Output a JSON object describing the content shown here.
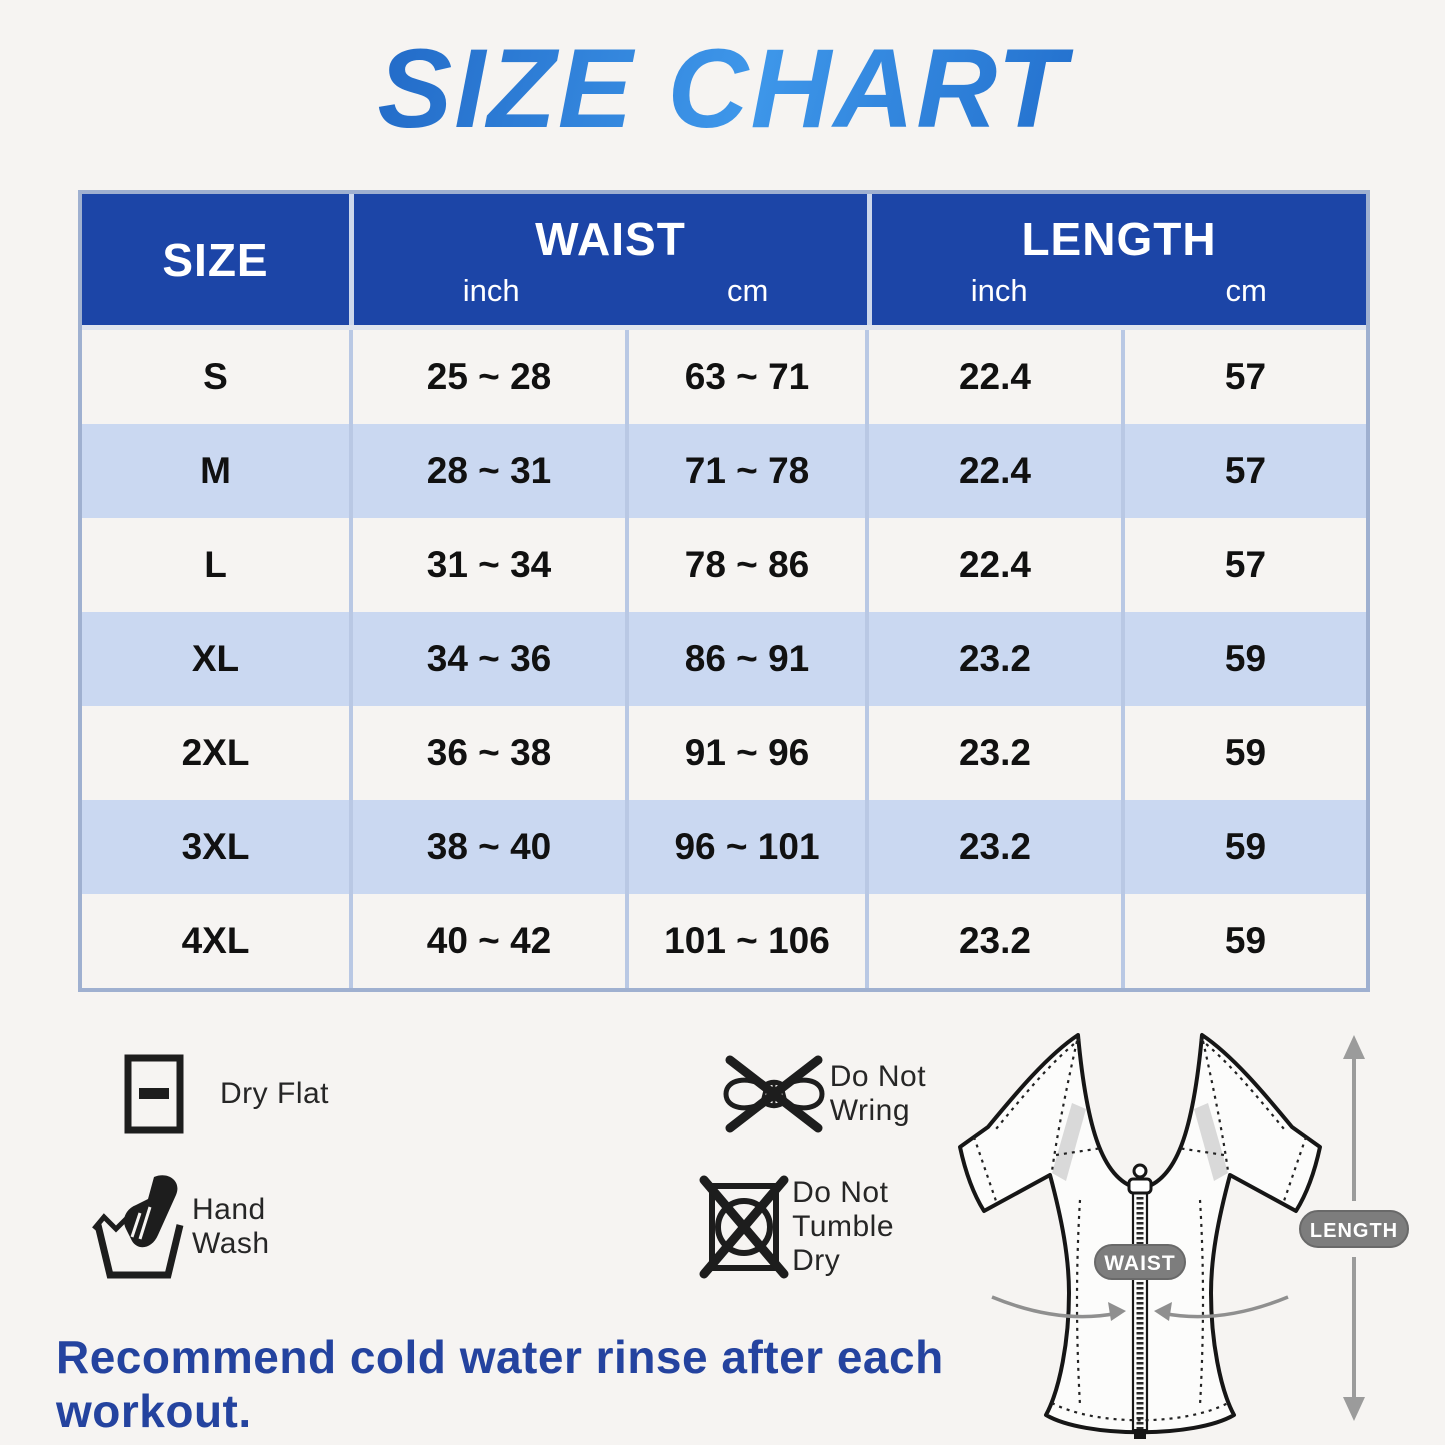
{
  "page": {
    "title": "SIZE CHART",
    "footer_note": "Recommend cold water rinse after each workout."
  },
  "colors": {
    "page_bg": "#f6f4f2",
    "header_blue": "#1c45a7",
    "row_light": "#f6f4f2",
    "row_blue": "#cad8f1",
    "table_border": "#9fb0d0",
    "cell_divider": "#b9c8e4",
    "header_divider": "#ccd7ec",
    "cell_text": "#111111",
    "care_text": "#262626",
    "icon_black": "#1d1d1d",
    "footer_blue": "#24439f",
    "badge_gray": "#7d7d7d",
    "arrow_gray": "#9b9b9b",
    "title_gradient_start": "#0f4cb0",
    "title_gradient_mid": "#3e97ea",
    "title_gradient_end": "#0c4fb5"
  },
  "chart_data": {
    "type": "table",
    "title": "SIZE CHART",
    "header": {
      "size": "SIZE",
      "waist": "WAIST",
      "length": "LENGTH",
      "unit_inch": "inch",
      "unit_cm": "cm"
    },
    "columns": [
      "SIZE",
      "WAIST (inch)",
      "WAIST (cm)",
      "LENGTH (inch)",
      "LENGTH (cm)"
    ],
    "rows": [
      [
        "S",
        "25 ~ 28",
        "63 ~ 71",
        "22.4",
        "57"
      ],
      [
        "M",
        "28 ~ 31",
        "71 ~ 78",
        "22.4",
        "57"
      ],
      [
        "L",
        "31 ~ 34",
        "78 ~ 86",
        "22.4",
        "57"
      ],
      [
        "XL",
        "34 ~ 36",
        "86 ~ 91",
        "23.2",
        "59"
      ],
      [
        "2XL",
        "36 ~ 38",
        "91 ~ 96",
        "23.2",
        "59"
      ],
      [
        "3XL",
        "38 ~ 40",
        "96 ~ 101",
        "23.2",
        "59"
      ],
      [
        "4XL",
        "40 ~ 42",
        "101 ~ 106",
        "23.2",
        "59"
      ]
    ]
  },
  "care": {
    "items": [
      {
        "icon": "dry-flat-icon",
        "label": "Dry Flat"
      },
      {
        "icon": "do-not-wring-icon",
        "label": "Do Not Wring"
      },
      {
        "icon": "hand-wash-icon",
        "label": "Hand Wash"
      },
      {
        "icon": "do-not-tumble-dry-icon",
        "label": "Do Not Tumble Dry"
      }
    ]
  },
  "diagram": {
    "waist_label": "WAIST",
    "length_label": "LENGTH"
  }
}
